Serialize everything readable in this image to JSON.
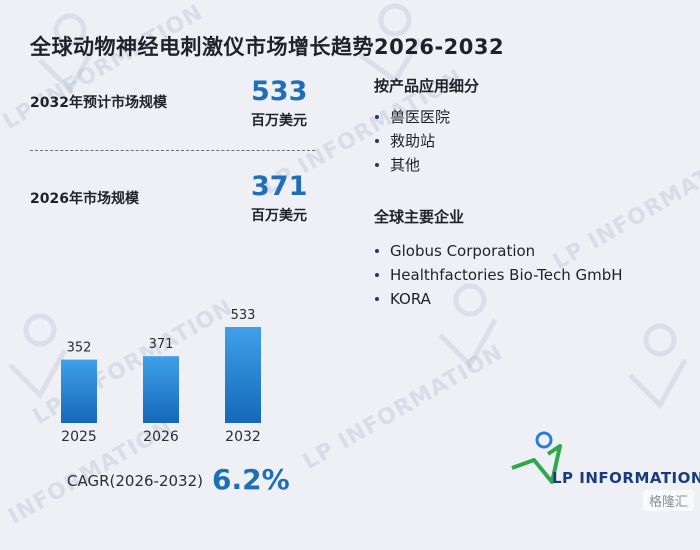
{
  "title": "全球动物神经电刺激仪市场增长趋势2026-2032",
  "metrics": [
    {
      "label": "2032年预计市场规模",
      "value": "533",
      "unit": "百万美元"
    },
    {
      "label": "2026年市场规模",
      "value": "371",
      "unit": "百万美元"
    }
  ],
  "segments": {
    "title": "按产品应用细分",
    "items": [
      "兽医医院",
      "救助站",
      "其他"
    ]
  },
  "companies": {
    "title": "全球主要企业",
    "items": [
      "Globus Corporation",
      "Healthfactories Bio-Tech GmbH",
      "KORA"
    ]
  },
  "cagr": {
    "label": "CAGR(2026-2032)",
    "value": "6.2%"
  },
  "watermark_text": "LP INFORMATION",
  "logo_text": "LP INFORMATION",
  "corner_badge": "格隆汇",
  "colors": {
    "accent": "#1f6fb8",
    "bar_top": "#3fa0ea",
    "bar_bottom": "#1668b8",
    "background": "#eef0f5"
  },
  "chart_data": {
    "type": "bar",
    "categories": [
      "2025",
      "2026",
      "2032"
    ],
    "values": [
      352,
      371,
      533
    ],
    "title": "",
    "xlabel": "",
    "ylabel": "",
    "ylim": [
      0,
      533
    ],
    "grid": false,
    "legend": "none"
  }
}
